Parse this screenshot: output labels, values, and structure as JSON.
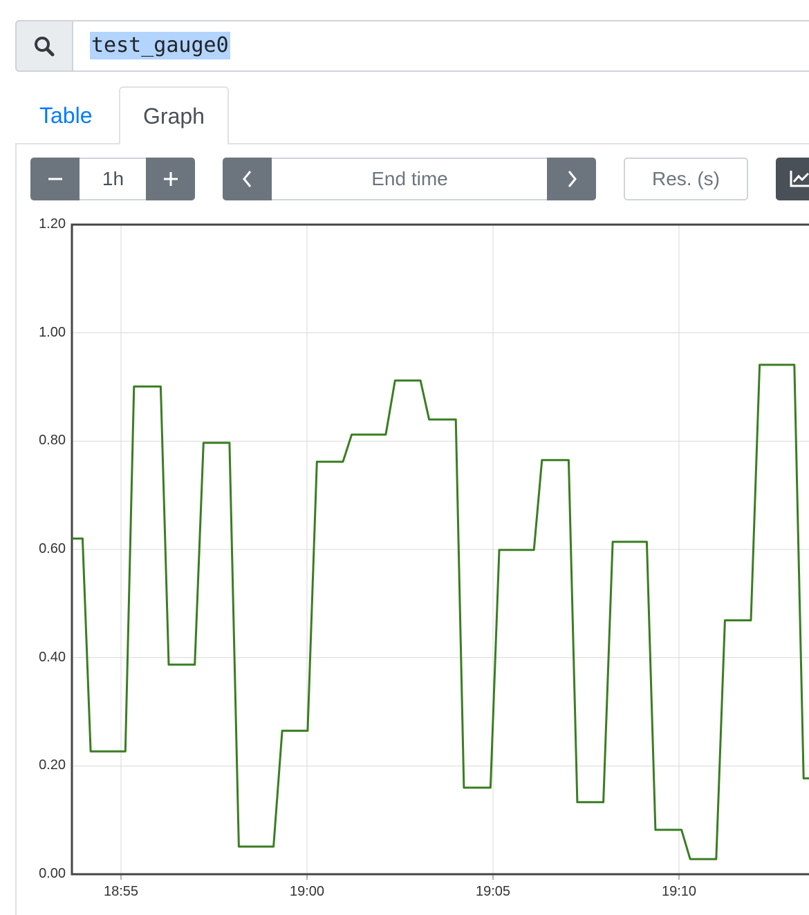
{
  "search": {
    "icon": "search-icon",
    "query": "test_gauge0"
  },
  "tabs": [
    {
      "label": "Table",
      "active": false
    },
    {
      "label": "Graph",
      "active": true
    }
  ],
  "controls": {
    "range_decrease_icon": "minus-icon",
    "range_value": "1h",
    "range_increase_icon": "plus-icon",
    "end_time_back_icon": "chevron-left-icon",
    "end_time_placeholder": "End time",
    "end_time_forward_icon": "chevron-right-icon",
    "resolution_placeholder": "Res. (s)",
    "chart_type_icon": "line-chart-icon"
  },
  "colors": {
    "series": "#3a7d22",
    "link": "#007bff",
    "button": "#6c757d"
  },
  "chart_data": {
    "type": "line",
    "title": "",
    "xlabel": "",
    "ylabel": "",
    "ylim": [
      0,
      1.2
    ],
    "y_ticks": [
      "0.00",
      "0.20",
      "0.40",
      "0.60",
      "0.80",
      "1.00",
      "1.20"
    ],
    "x_ticks": [
      "18:55",
      "19:00",
      "19:05",
      "19:10"
    ],
    "grid": true,
    "series": [
      {
        "points": [
          [
            "18:53:41",
            0.62
          ],
          [
            "18:53:58",
            0.62
          ],
          [
            "18:54:11",
            0.227
          ],
          [
            "18:55:07",
            0.227
          ],
          [
            "18:55:21",
            0.901
          ],
          [
            "18:56:04",
            0.901
          ],
          [
            "18:56:17",
            0.387
          ],
          [
            "18:56:59",
            0.387
          ],
          [
            "18:57:13",
            0.797
          ],
          [
            "18:57:55",
            0.797
          ],
          [
            "18:58:10",
            0.051
          ],
          [
            "18:59:06",
            0.051
          ],
          [
            "18:59:20",
            0.265
          ],
          [
            "19:00:01",
            0.265
          ],
          [
            "19:00:16",
            0.762
          ],
          [
            "19:00:58",
            0.762
          ],
          [
            "19:01:12",
            0.812
          ],
          [
            "19:02:07",
            0.812
          ],
          [
            "19:02:22",
            0.912
          ],
          [
            "19:03:03",
            0.912
          ],
          [
            "19:03:17",
            0.84
          ],
          [
            "19:04:00",
            0.84
          ],
          [
            "19:04:13",
            0.16
          ],
          [
            "19:04:56",
            0.16
          ],
          [
            "19:05:10",
            0.599
          ],
          [
            "19:06:06",
            0.599
          ],
          [
            "19:06:19",
            0.765
          ],
          [
            "19:07:02",
            0.765
          ],
          [
            "19:07:16",
            0.133
          ],
          [
            "19:07:58",
            0.133
          ],
          [
            "19:08:13",
            0.614
          ],
          [
            "19:09:08",
            0.614
          ],
          [
            "19:09:22",
            0.082
          ],
          [
            "19:10:04",
            0.082
          ],
          [
            "19:10:18",
            0.028
          ],
          [
            "19:11:00",
            0.028
          ],
          [
            "19:11:14",
            0.469
          ],
          [
            "19:11:56",
            0.469
          ],
          [
            "19:12:10",
            0.941
          ],
          [
            "19:13:06",
            0.941
          ],
          [
            "19:13:21",
            0.177
          ],
          [
            "19:13:30",
            0.177
          ]
        ]
      }
    ]
  }
}
